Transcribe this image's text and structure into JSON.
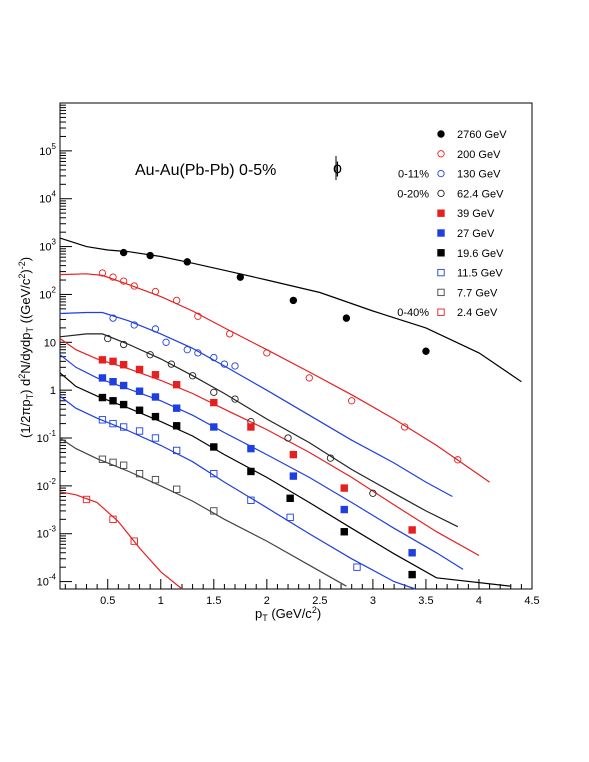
{
  "chart_data": {
    "type": "scatter",
    "title": "Au-Au(Pb-Pb)  0-5%",
    "particle": "ϕ",
    "xlabel": "p_T (GeV/c^2)",
    "ylabel": "(1/2πp_T) d^2N/dydp_T ((GeV/c^2)^-2)",
    "xlim": [
      0.05,
      4.5
    ],
    "ylim": [
      7e-05,
      1000000
    ],
    "yscale": "log",
    "x_ticks": [
      0.5,
      1,
      1.5,
      2,
      2.5,
      3,
      3.5,
      4,
      4.5
    ],
    "x_tick_labels": [
      "0.5",
      "1",
      "1.5",
      "2",
      "2.5",
      "3",
      "3.5",
      "4",
      "4.5"
    ],
    "y_ticks": [
      0.0001,
      0.001,
      0.01,
      0.1,
      1,
      10,
      100,
      1000,
      10000,
      100000
    ],
    "y_tick_labels": [
      {
        "base": "10",
        "exp": "-4"
      },
      {
        "base": "10",
        "exp": "-3"
      },
      {
        "base": "10",
        "exp": "-2"
      },
      {
        "base": "10",
        "exp": "-1"
      },
      {
        "base": "1",
        "exp": ""
      },
      {
        "base": "10",
        "exp": ""
      },
      {
        "base": "10",
        "exp": "2"
      },
      {
        "base": "10",
        "exp": "3"
      },
      {
        "base": "10",
        "exp": "4"
      },
      {
        "base": "10",
        "exp": "5"
      }
    ],
    "centrality_notes": [
      {
        "text": "0-11%",
        "series": "130 GeV"
      },
      {
        "text": "0-20%",
        "series": "62.4 GeV"
      },
      {
        "text": "0-40%",
        "series": "2.4 GeV"
      }
    ],
    "series": [
      {
        "name": "2760 GeV",
        "color": "#000000",
        "marker": "circle-filled",
        "points": [
          [
            0.65,
            750
          ],
          [
            0.9,
            650
          ],
          [
            1.25,
            480
          ],
          [
            1.75,
            230
          ],
          [
            2.25,
            75
          ],
          [
            2.75,
            32
          ],
          [
            3.5,
            6.5
          ]
        ],
        "curve": [
          [
            0.05,
            1500
          ],
          [
            0.3,
            1000
          ],
          [
            0.5,
            850
          ],
          [
            0.7,
            780
          ],
          [
            1.0,
            620
          ],
          [
            1.3,
            450
          ],
          [
            1.6,
            320
          ],
          [
            2.0,
            200
          ],
          [
            2.5,
            110
          ],
          [
            3.0,
            45
          ],
          [
            3.5,
            20
          ],
          [
            4.0,
            6
          ],
          [
            4.4,
            1.5
          ]
        ]
      },
      {
        "name": "200 GeV",
        "color": "#e62020",
        "marker": "circle-open",
        "points": [
          [
            0.45,
            280
          ],
          [
            0.55,
            230
          ],
          [
            0.65,
            190
          ],
          [
            0.75,
            150
          ],
          [
            0.95,
            115
          ],
          [
            1.15,
            75
          ],
          [
            1.35,
            35
          ],
          [
            1.65,
            15
          ],
          [
            2.0,
            6
          ],
          [
            2.4,
            1.8
          ],
          [
            2.8,
            0.6
          ],
          [
            3.3,
            0.17
          ],
          [
            3.8,
            0.035
          ]
        ],
        "curve": [
          [
            0.05,
            260
          ],
          [
            0.3,
            270
          ],
          [
            0.45,
            250
          ],
          [
            0.7,
            160
          ],
          [
            1.0,
            90
          ],
          [
            1.3,
            45
          ],
          [
            1.6,
            20
          ],
          [
            2.0,
            7
          ],
          [
            2.4,
            2.4
          ],
          [
            2.8,
            0.8
          ],
          [
            3.2,
            0.25
          ],
          [
            3.6,
            0.07
          ],
          [
            4.1,
            0.012
          ]
        ]
      },
      {
        "name": "130 GeV",
        "color": "#1f3fe0",
        "marker": "circle-open",
        "points": [
          [
            0.55,
            32
          ],
          [
            0.75,
            23
          ],
          [
            0.95,
            19
          ],
          [
            1.05,
            10
          ],
          [
            1.25,
            7
          ],
          [
            1.35,
            6
          ],
          [
            1.5,
            4.8
          ],
          [
            1.6,
            3.5
          ],
          [
            1.7,
            3.2
          ]
        ],
        "curve": [
          [
            0.05,
            40
          ],
          [
            0.3,
            42
          ],
          [
            0.45,
            42
          ],
          [
            0.7,
            28
          ],
          [
            1.0,
            15
          ],
          [
            1.3,
            7.5
          ],
          [
            1.6,
            3.2
          ],
          [
            2.0,
            1.0
          ],
          [
            2.4,
            0.3
          ],
          [
            2.8,
            0.09
          ],
          [
            3.2,
            0.03
          ],
          [
            3.5,
            0.012
          ],
          [
            3.75,
            0.006
          ]
        ]
      },
      {
        "name": "62.4 GeV",
        "color": "#222222",
        "marker": "circle-open",
        "points": [
          [
            0.5,
            12
          ],
          [
            0.65,
            9
          ],
          [
            0.9,
            5.5
          ],
          [
            1.1,
            3.5
          ],
          [
            1.3,
            2
          ],
          [
            1.5,
            0.9
          ],
          [
            1.7,
            0.65
          ],
          [
            1.85,
            0.22
          ],
          [
            2.2,
            0.1
          ],
          [
            2.6,
            0.038
          ],
          [
            3.0,
            0.007
          ]
        ],
        "curve": [
          [
            0.05,
            13
          ],
          [
            0.3,
            15
          ],
          [
            0.45,
            15
          ],
          [
            0.7,
            9
          ],
          [
            1.0,
            4.5
          ],
          [
            1.3,
            2
          ],
          [
            1.6,
            0.85
          ],
          [
            2.0,
            0.25
          ],
          [
            2.4,
            0.08
          ],
          [
            2.8,
            0.022
          ],
          [
            3.2,
            0.007
          ],
          [
            3.5,
            0.003
          ],
          [
            3.8,
            0.0014
          ]
        ]
      },
      {
        "name": "39 GeV",
        "color": "#e62020",
        "marker": "square-filled",
        "points": [
          [
            0.45,
            4.3
          ],
          [
            0.55,
            4.0
          ],
          [
            0.65,
            3.4
          ],
          [
            0.8,
            2.7
          ],
          [
            0.95,
            2.1
          ],
          [
            1.15,
            1.3
          ],
          [
            1.5,
            0.55
          ],
          [
            1.85,
            0.17
          ],
          [
            2.25,
            0.045
          ],
          [
            2.73,
            0.009
          ],
          [
            3.37,
            0.0012
          ]
        ],
        "curve": [
          [
            0.05,
            12
          ],
          [
            0.2,
            7
          ],
          [
            0.4,
            4.5
          ],
          [
            0.7,
            2.8
          ],
          [
            1.0,
            1.6
          ],
          [
            1.3,
            0.85
          ],
          [
            1.6,
            0.4
          ],
          [
            2.0,
            0.15
          ],
          [
            2.4,
            0.05
          ],
          [
            2.8,
            0.015
          ],
          [
            3.2,
            0.004
          ],
          [
            3.6,
            0.0011
          ],
          [
            4.0,
            0.00035
          ]
        ]
      },
      {
        "name": "27 GeV",
        "color": "#1f3fe0",
        "marker": "square-filled",
        "points": [
          [
            0.45,
            1.8
          ],
          [
            0.55,
            1.5
          ],
          [
            0.65,
            1.25
          ],
          [
            0.8,
            0.95
          ],
          [
            0.95,
            0.72
          ],
          [
            1.15,
            0.42
          ],
          [
            1.5,
            0.17
          ],
          [
            1.85,
            0.06
          ],
          [
            2.25,
            0.016
          ],
          [
            2.73,
            0.0032
          ],
          [
            3.37,
            0.0004
          ]
        ],
        "curve": [
          [
            0.05,
            5.5
          ],
          [
            0.2,
            3
          ],
          [
            0.4,
            1.8
          ],
          [
            0.7,
            1.05
          ],
          [
            1.0,
            0.6
          ],
          [
            1.3,
            0.3
          ],
          [
            1.6,
            0.13
          ],
          [
            2.0,
            0.045
          ],
          [
            2.4,
            0.015
          ],
          [
            2.8,
            0.0045
          ],
          [
            3.2,
            0.0013
          ],
          [
            3.6,
            0.0004
          ],
          [
            3.85,
            0.00018
          ]
        ]
      },
      {
        "name": "19.6 GeV",
        "color": "#000000",
        "marker": "square-filled",
        "points": [
          [
            0.45,
            0.7
          ],
          [
            0.55,
            0.6
          ],
          [
            0.65,
            0.5
          ],
          [
            0.8,
            0.38
          ],
          [
            0.95,
            0.28
          ],
          [
            1.15,
            0.18
          ],
          [
            1.5,
            0.065
          ],
          [
            1.85,
            0.02
          ],
          [
            2.22,
            0.0055
          ],
          [
            2.73,
            0.0011
          ],
          [
            3.37,
            0.00014
          ]
        ],
        "curve": [
          [
            0.05,
            2.3
          ],
          [
            0.2,
            1.2
          ],
          [
            0.4,
            0.75
          ],
          [
            0.7,
            0.42
          ],
          [
            1.0,
            0.22
          ],
          [
            1.3,
            0.11
          ],
          [
            1.6,
            0.045
          ],
          [
            2.0,
            0.015
          ],
          [
            2.4,
            0.0045
          ],
          [
            2.8,
            0.0013
          ],
          [
            3.2,
            0.00038
          ],
          [
            3.6,
            0.00012
          ],
          [
            4.3,
            8e-05
          ]
        ]
      },
      {
        "name": "11.5 GeV",
        "color": "#1f3fe0",
        "marker": "square-open",
        "points": [
          [
            0.45,
            0.24
          ],
          [
            0.55,
            0.2
          ],
          [
            0.65,
            0.17
          ],
          [
            0.8,
            0.14
          ],
          [
            0.95,
            0.1
          ],
          [
            1.15,
            0.055
          ],
          [
            1.5,
            0.018
          ],
          [
            1.85,
            0.005
          ],
          [
            2.22,
            0.0022
          ],
          [
            2.85,
            0.0002
          ]
        ],
        "curve": [
          [
            0.05,
            0.75
          ],
          [
            0.2,
            0.42
          ],
          [
            0.4,
            0.26
          ],
          [
            0.7,
            0.14
          ],
          [
            1.0,
            0.07
          ],
          [
            1.3,
            0.032
          ],
          [
            1.6,
            0.012
          ],
          [
            2.0,
            0.0035
          ],
          [
            2.4,
            0.001
          ],
          [
            2.8,
            0.0003
          ],
          [
            3.2,
            0.0001
          ],
          [
            3.4,
            7e-05
          ]
        ]
      },
      {
        "name": "7.7 GeV",
        "color": "#444444",
        "marker": "square-open",
        "points": [
          [
            0.45,
            0.036
          ],
          [
            0.55,
            0.031
          ],
          [
            0.65,
            0.027
          ],
          [
            0.8,
            0.018
          ],
          [
            0.95,
            0.0135
          ],
          [
            1.15,
            0.0085
          ],
          [
            1.5,
            0.003
          ]
        ],
        "curve": [
          [
            0.05,
            0.1
          ],
          [
            0.2,
            0.06
          ],
          [
            0.4,
            0.037
          ],
          [
            0.7,
            0.02
          ],
          [
            1.0,
            0.01
          ],
          [
            1.3,
            0.0048
          ],
          [
            1.6,
            0.002
          ],
          [
            2.0,
            0.0007
          ],
          [
            2.4,
            0.00022
          ],
          [
            2.75,
            8e-05
          ]
        ]
      },
      {
        "name": "2.4 GeV",
        "color": "#e62020",
        "marker": "square-open",
        "points": [
          [
            0.3,
            0.0052
          ],
          [
            0.55,
            0.002
          ],
          [
            0.75,
            0.0007
          ]
        ],
        "curve": [
          [
            0.05,
            0.0075
          ],
          [
            0.2,
            0.0065
          ],
          [
            0.4,
            0.0045
          ],
          [
            0.6,
            0.0018
          ],
          [
            0.8,
            0.0005
          ],
          [
            1.0,
            0.00016
          ],
          [
            1.2,
            7e-05
          ]
        ]
      }
    ],
    "legend_position": "top-right",
    "grid": false
  }
}
